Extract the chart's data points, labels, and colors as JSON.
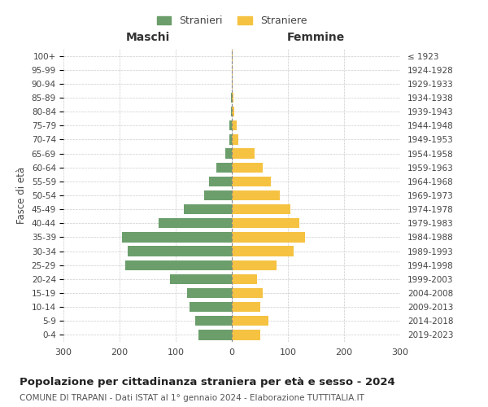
{
  "age_groups": [
    "0-4",
    "5-9",
    "10-14",
    "15-19",
    "20-24",
    "25-29",
    "30-34",
    "35-39",
    "40-44",
    "45-49",
    "50-54",
    "55-59",
    "60-64",
    "65-69",
    "70-74",
    "75-79",
    "80-84",
    "85-89",
    "90-94",
    "95-99",
    "100+"
  ],
  "birth_years": [
    "2019-2023",
    "2014-2018",
    "2009-2013",
    "2004-2008",
    "1999-2003",
    "1994-1998",
    "1989-1993",
    "1984-1988",
    "1979-1983",
    "1974-1978",
    "1969-1973",
    "1964-1968",
    "1959-1963",
    "1954-1958",
    "1949-1953",
    "1944-1948",
    "1939-1943",
    "1934-1938",
    "1929-1933",
    "1924-1928",
    "≤ 1923"
  ],
  "maschi": [
    60,
    65,
    75,
    80,
    110,
    190,
    185,
    195,
    130,
    85,
    50,
    40,
    28,
    12,
    5,
    4,
    2,
    1,
    0,
    0,
    0
  ],
  "femmine": [
    50,
    65,
    50,
    55,
    45,
    80,
    110,
    130,
    120,
    105,
    85,
    70,
    55,
    40,
    12,
    8,
    4,
    3,
    1,
    1,
    1
  ],
  "color_maschi": "#6b9e6b",
  "color_femmine": "#f5c242",
  "title": "Popolazione per cittadinanza straniera per età e sesso - 2024",
  "subtitle": "COMUNE DI TRAPANI - Dati ISTAT al 1° gennaio 2024 - Elaborazione TUTTITALIA.IT",
  "xlabel_maschi": "Maschi",
  "xlabel_femmine": "Femmine",
  "ylabel_left": "Fasce di età",
  "legend_maschi": "Stranieri",
  "legend_femmine": "Straniere",
  "xlim": 300,
  "background_color": "#ffffff",
  "grid_color": "#cccccc"
}
